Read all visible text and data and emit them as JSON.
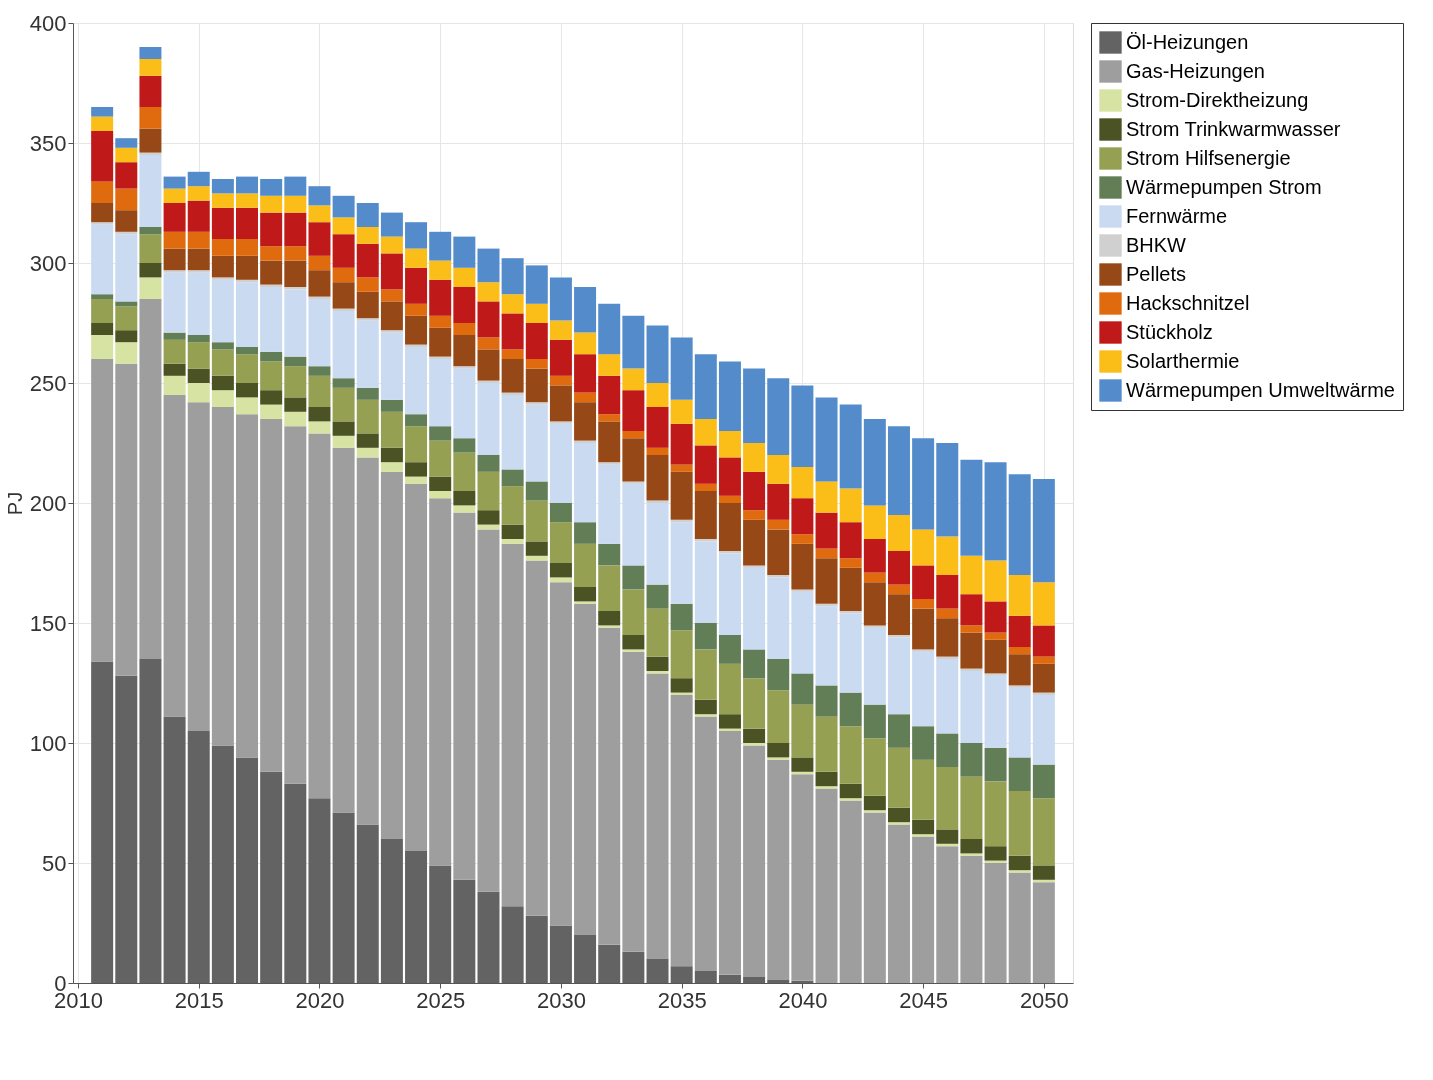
{
  "chart_data": {
    "type": "bar",
    "stacked": true,
    "ylabel": "PJ",
    "x": [
      2011,
      2012,
      2013,
      2014,
      2015,
      2016,
      2017,
      2018,
      2019,
      2020,
      2021,
      2022,
      2023,
      2024,
      2025,
      2026,
      2027,
      2028,
      2029,
      2030,
      2031,
      2032,
      2033,
      2034,
      2035,
      2036,
      2037,
      2038,
      2039,
      2040,
      2041,
      2042,
      2043,
      2044,
      2045,
      2046,
      2047,
      2048,
      2049,
      2050
    ],
    "xlim": [
      2010,
      2051
    ],
    "xticks": [
      2010,
      2015,
      2020,
      2025,
      2030,
      2035,
      2040,
      2045,
      2050
    ],
    "ylim": [
      0,
      400
    ],
    "yticks": [
      0,
      50,
      100,
      150,
      200,
      250,
      300,
      350,
      400
    ],
    "grid": true,
    "legend": "right",
    "series": [
      {
        "name": "Öl-Heizungen",
        "color": "#636363",
        "values": [
          134,
          128,
          135,
          111,
          105,
          99,
          94,
          88,
          83,
          77,
          71,
          66,
          60,
          55,
          49,
          43,
          38,
          32,
          28,
          24,
          20,
          16,
          13,
          10,
          7,
          5,
          3.5,
          2.5,
          1.5,
          1,
          0,
          0,
          0,
          0,
          0,
          0,
          0,
          0,
          0,
          0
        ]
      },
      {
        "name": "Gas-Heizungen",
        "color": "#9e9e9e",
        "values": [
          126,
          130,
          150,
          134,
          137,
          141,
          143,
          147,
          149,
          152,
          152,
          153,
          153,
          153,
          153,
          153,
          151,
          151,
          148,
          143,
          138,
          132,
          125,
          119,
          113,
          106,
          101.5,
          96.5,
          91.5,
          86,
          81,
          76,
          71,
          66,
          61,
          57,
          53,
          50,
          46,
          42
        ]
      },
      {
        "name": "Strom-Direktheizung",
        "color": "#d7e3a3",
        "values": [
          10,
          9,
          9,
          8,
          8,
          7,
          7,
          6,
          6,
          5,
          5,
          4,
          4,
          3,
          3,
          3,
          2,
          2,
          2,
          2,
          1,
          1,
          1,
          1,
          1,
          1,
          1,
          1,
          1,
          1,
          1,
          1,
          1,
          1,
          1,
          1,
          1,
          1,
          1,
          1
        ]
      },
      {
        "name": "Strom Trinkwarmwasser",
        "color": "#4b5223",
        "values": [
          5,
          5,
          6,
          5,
          6,
          6,
          6,
          6,
          6,
          6,
          6,
          6,
          6,
          6,
          6,
          6,
          6,
          6,
          6,
          6,
          6,
          6,
          6,
          6,
          6,
          6,
          6,
          6,
          6,
          6,
          6,
          6,
          6,
          6,
          6,
          6,
          6,
          6,
          6,
          6
        ]
      },
      {
        "name": "Strom Hilfsenergie",
        "color": "#95a052",
        "values": [
          10,
          10,
          12,
          10,
          11,
          11,
          12,
          12,
          13,
          13,
          14,
          14,
          15,
          15,
          15,
          16,
          16,
          16,
          17,
          17,
          18,
          19,
          19,
          20,
          20,
          21,
          21,
          21,
          22,
          22,
          23,
          24,
          24,
          25,
          25,
          26,
          26,
          27,
          27,
          28
        ]
      },
      {
        "name": "Wärmepumpen Strom",
        "color": "#627e56",
        "values": [
          2,
          2,
          3,
          3,
          3,
          3,
          3,
          4,
          4,
          4,
          4,
          5,
          5,
          5,
          6,
          6,
          7,
          7,
          8,
          8,
          9,
          9,
          10,
          10,
          11,
          11,
          12,
          12,
          13,
          13,
          13,
          14,
          14,
          14,
          14,
          14,
          14,
          14,
          14,
          14
        ]
      },
      {
        "name": "Fernwärme",
        "color": "#c9daf1",
        "values": [
          29,
          28,
          30,
          25,
          26,
          26,
          27,
          27,
          28,
          28,
          28,
          28,
          28,
          28,
          28,
          29,
          30,
          31,
          32,
          33,
          33,
          33,
          34,
          34,
          34,
          34,
          34,
          34,
          34,
          34,
          33,
          33,
          32,
          32,
          31,
          31,
          30,
          30,
          29,
          29
        ]
      },
      {
        "name": "BHKW",
        "color": "#d0d0d0",
        "values": [
          1,
          1,
          1,
          1,
          1,
          1,
          1,
          1,
          1,
          1,
          1,
          1,
          1,
          1,
          1,
          1,
          1,
          1,
          1,
          1,
          1,
          1,
          1,
          1,
          1,
          1,
          1,
          1,
          1,
          1,
          1,
          1,
          1,
          1,
          1,
          1,
          1,
          1,
          1,
          1
        ]
      },
      {
        "name": "Pellets",
        "color": "#974817",
        "values": [
          8,
          9,
          10,
          9,
          9,
          9,
          10,
          10,
          11,
          11,
          11,
          11,
          12,
          12,
          12,
          13,
          13,
          14,
          14,
          15,
          16,
          17,
          18,
          19,
          20,
          20,
          20,
          19,
          19,
          19,
          19,
          18,
          18,
          17,
          17,
          16,
          15,
          14,
          13,
          12
        ]
      },
      {
        "name": "Hackschnitzel",
        "color": "#e06a0e",
        "values": [
          9,
          9,
          9,
          7,
          7,
          7,
          7,
          6,
          6,
          6,
          6,
          6,
          5,
          5,
          5,
          5,
          5,
          4,
          4,
          4,
          4,
          3,
          3,
          3,
          3,
          3,
          3,
          4,
          4,
          4,
          4,
          4,
          4,
          4,
          4,
          4,
          3,
          3,
          3,
          3
        ]
      },
      {
        "name": "Stückholz",
        "color": "#c01919",
        "values": [
          21,
          11,
          13,
          12,
          13,
          13,
          13,
          14,
          14,
          14,
          14,
          14,
          15,
          15,
          15,
          15,
          15,
          15,
          15,
          15,
          16,
          16,
          17,
          17,
          17,
          16,
          16,
          16,
          15,
          15,
          15,
          15,
          14,
          14,
          14,
          14,
          13,
          13,
          13,
          13
        ]
      },
      {
        "name": "Solarthermie",
        "color": "#fbbd18",
        "values": [
          6,
          6,
          7,
          6,
          6,
          6,
          6,
          7,
          7,
          7,
          7,
          7,
          7,
          8,
          8,
          8,
          8,
          8,
          8,
          8,
          9,
          9,
          9,
          10,
          10,
          11,
          11,
          12,
          12,
          13,
          13,
          14,
          14,
          15,
          15,
          16,
          16,
          17,
          17,
          18
        ]
      },
      {
        "name": "Wärmepumpen Umweltwärme",
        "color": "#548ccb",
        "values": [
          4,
          4,
          5,
          5,
          6,
          6,
          7,
          7,
          8,
          8,
          9,
          10,
          10,
          11,
          12,
          13,
          14,
          15,
          16,
          18,
          19,
          21,
          22,
          24,
          26,
          27,
          29,
          31,
          32,
          34,
          35,
          35,
          36,
          37,
          38,
          39,
          40,
          41,
          42,
          43
        ]
      }
    ]
  }
}
